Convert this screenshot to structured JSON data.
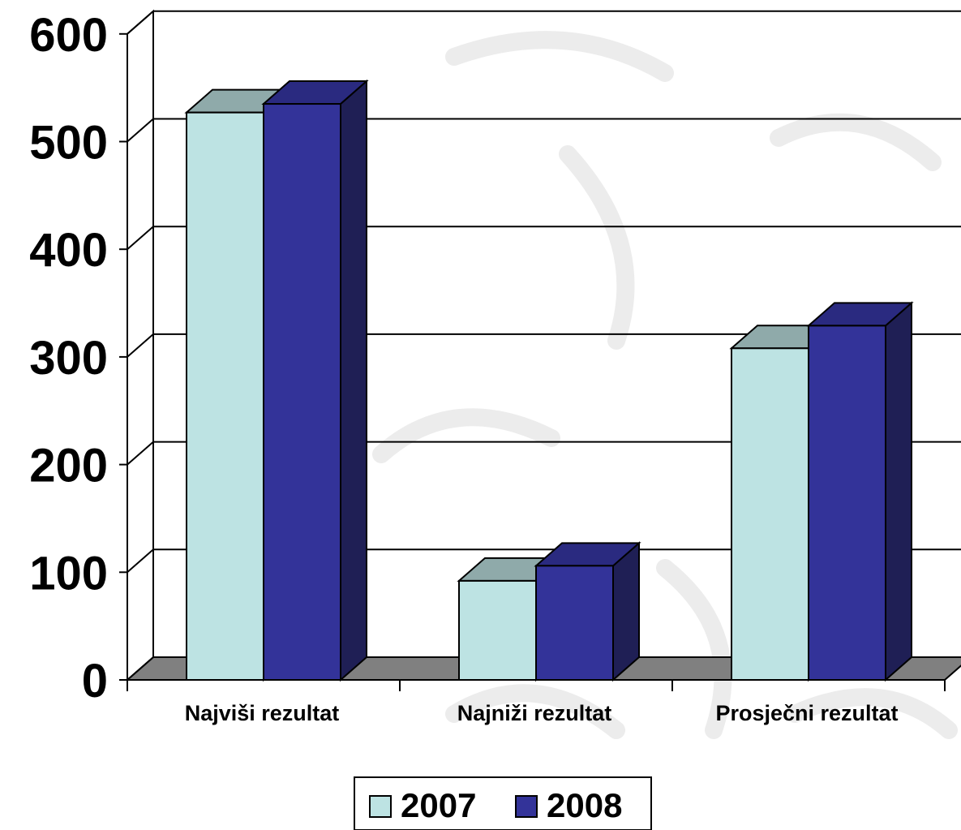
{
  "chart_data": {
    "type": "bar",
    "style": "3d-clustered-column",
    "categories": [
      "Najviši rezultat",
      "Najniži rezultat",
      "Prosječni rezultat"
    ],
    "series": [
      {
        "name": "2007",
        "values": [
          527,
          92,
          308
        ],
        "color": "#bde3e3"
      },
      {
        "name": "2008",
        "values": [
          535,
          106,
          329
        ],
        "color": "#333399"
      }
    ],
    "yticks": [
      "0",
      "100",
      "200",
      "300",
      "400",
      "500",
      "600"
    ],
    "ylim": [
      0,
      600
    ],
    "grid": true,
    "legend_position": "bottom",
    "colors": {
      "series1_top": "#8faaaa",
      "series2_top": "#2a2a80",
      "series2_side": "#1f1f55",
      "floor": "#808080",
      "watermark": "#ececec"
    }
  }
}
